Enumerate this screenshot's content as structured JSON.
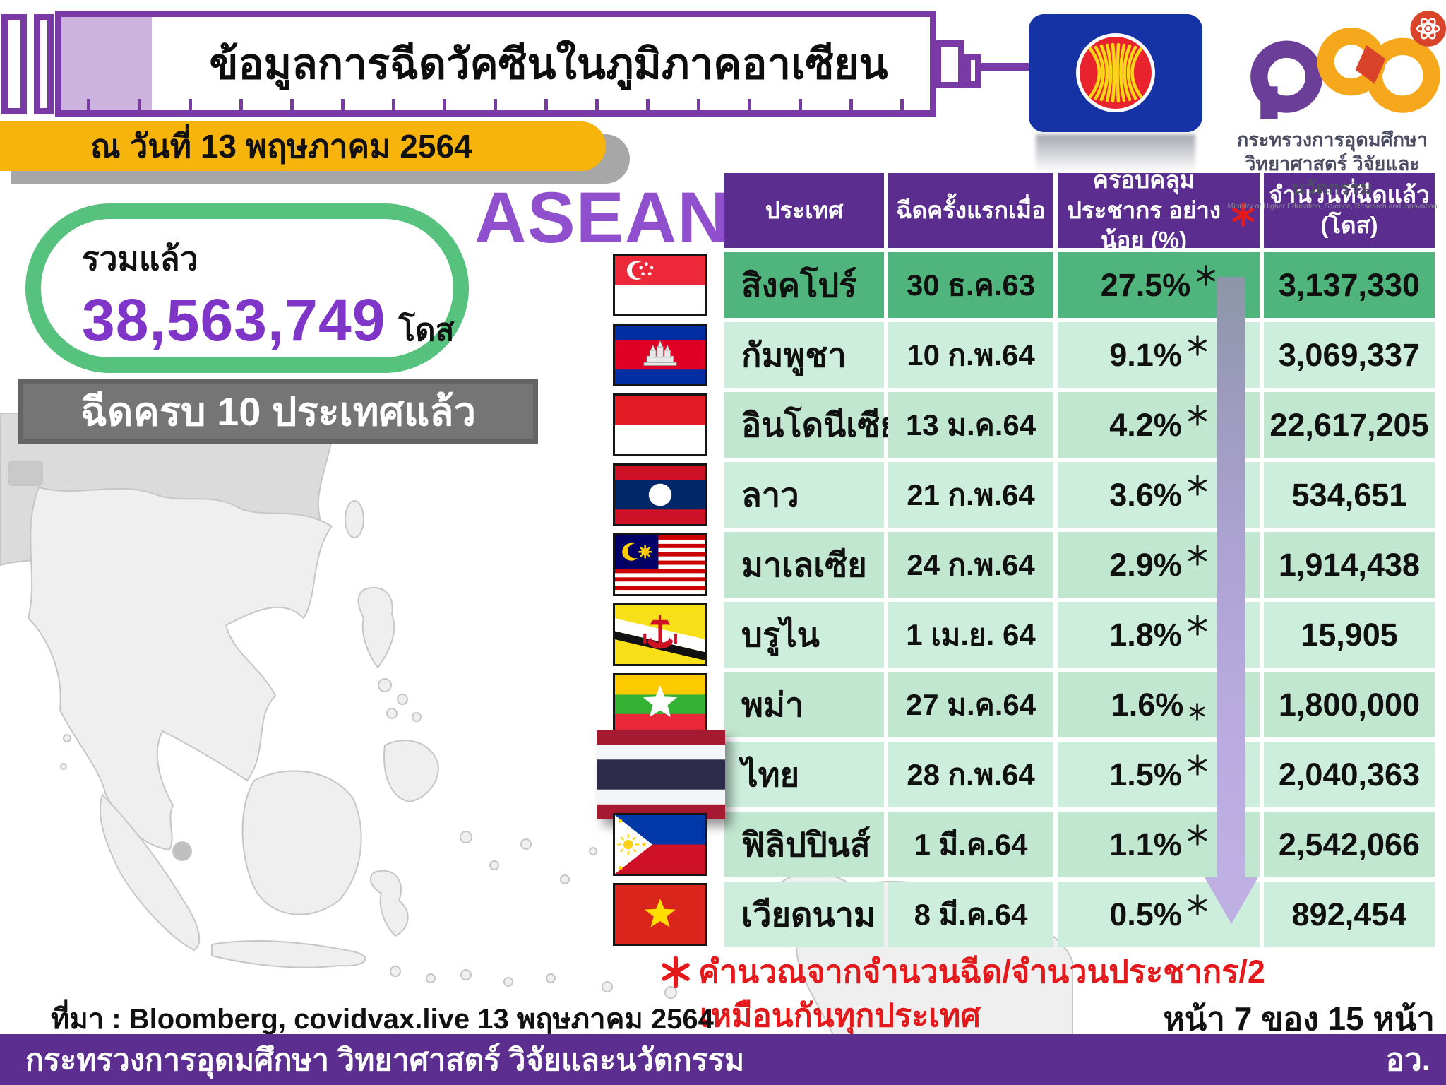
{
  "header": {
    "title": "ข้อมูลการฉีดวัคซีนในภูมิภาคอาเซียน",
    "date_badge": "ณ วันที่ 13 พฤษภาคม 2564",
    "asean_word": "ASEAN",
    "mhesi": {
      "thai_line1": "กระทรวงการอุดมศึกษา",
      "thai_line2": "วิทยาศาสตร์ วิจัยและนวัตกรรม",
      "english_line": "Ministry of Higher Education, Science, Research and Innovation"
    }
  },
  "summary": {
    "total_label": "รวมแล้ว",
    "total_value": "38,563,749",
    "total_unit": "โดส",
    "complete_banner": "ฉีดครบ 10 ประเทศแล้ว"
  },
  "table": {
    "headers": [
      "ประเทศ",
      "ฉีดครั้งแรกเมื่อ",
      "ครอบคลุมประชากร อย่างน้อย (%)",
      "จำนวนที่ฉีดแล้ว (โดส)"
    ],
    "coverage_note_marker": "*",
    "rows": [
      {
        "flag": "singapore-flag",
        "country": "สิงคโปร์",
        "first_dose": "30 ธ.ค.63",
        "coverage": "27.5%",
        "doses": "3,137,330"
      },
      {
        "flag": "cambodia-flag",
        "country": "กัมพูชา",
        "first_dose": "10 ก.พ.64",
        "coverage": "9.1%",
        "doses": "3,069,337"
      },
      {
        "flag": "indonesia-flag",
        "country": "อินโดนีเซีย",
        "first_dose": "13 ม.ค.64",
        "coverage": "4.2%",
        "doses": "22,617,205"
      },
      {
        "flag": "laos-flag",
        "country": "ลาว",
        "first_dose": "21 ก.พ.64",
        "coverage": "3.6%",
        "doses": "534,651"
      },
      {
        "flag": "malaysia-flag",
        "country": "มาเลเซีย",
        "first_dose": "24 ก.พ.64",
        "coverage": "2.9%",
        "doses": "1,914,438"
      },
      {
        "flag": "brunei-flag",
        "country": "บรูไน",
        "first_dose": "1 เม.ย. 64",
        "coverage": "1.8%",
        "doses": "15,905"
      },
      {
        "flag": "myanmar-flag",
        "country": "พม่า",
        "first_dose": "27 ม.ค.64",
        "coverage": "1.6%",
        "doses": "1,800,000"
      },
      {
        "flag": "thailand-flag",
        "country": "ไทย",
        "first_dose": "28 ก.พ.64",
        "coverage": "1.5%",
        "doses": "2,040,363"
      },
      {
        "flag": "philippines-flag",
        "country": "ฟิลิปปินส์",
        "first_dose": "1 มี.ค.64",
        "coverage": "1.1%",
        "doses": "2,542,066"
      },
      {
        "flag": "vietnam-flag",
        "country": "เวียดนาม",
        "first_dose": "8 มี.ค.64",
        "coverage": "0.5%",
        "doses": "892,454"
      }
    ]
  },
  "footnote": {
    "line1": "คำนวณจากจำนวนฉีด/จำนวนประชากร/2",
    "line2": "เหมือนกันทุกประเทศ"
  },
  "source_line": "ที่มา : Bloomberg, covidvax.live 13 พฤษภาคม 2564",
  "page_indicator": "หน้า 7 ของ 15 หน้า",
  "footer": {
    "ministry": "กระทรวงการอุดมศึกษา วิทยาศาสตร์ วิจัยและนวัตกรรม",
    "abbreviation": "อว."
  },
  "colors": {
    "header_purple": "#5B2D8F",
    "footer_purple": "#5C2E90",
    "row_green_dark": "#4FB57C",
    "row_green_light": "#CDEEDC",
    "row_green_alt": "#C2E7D1",
    "accent_yellow": "#F6B40D",
    "total_purple": "#7F35C8",
    "green_border": "#57C17E",
    "banner_gray": "#757575",
    "note_red": "#E3191C",
    "syringe_purple": "#7A3AA5",
    "lavender": "#CBB3DD",
    "asean_blue": "#1533A5"
  }
}
